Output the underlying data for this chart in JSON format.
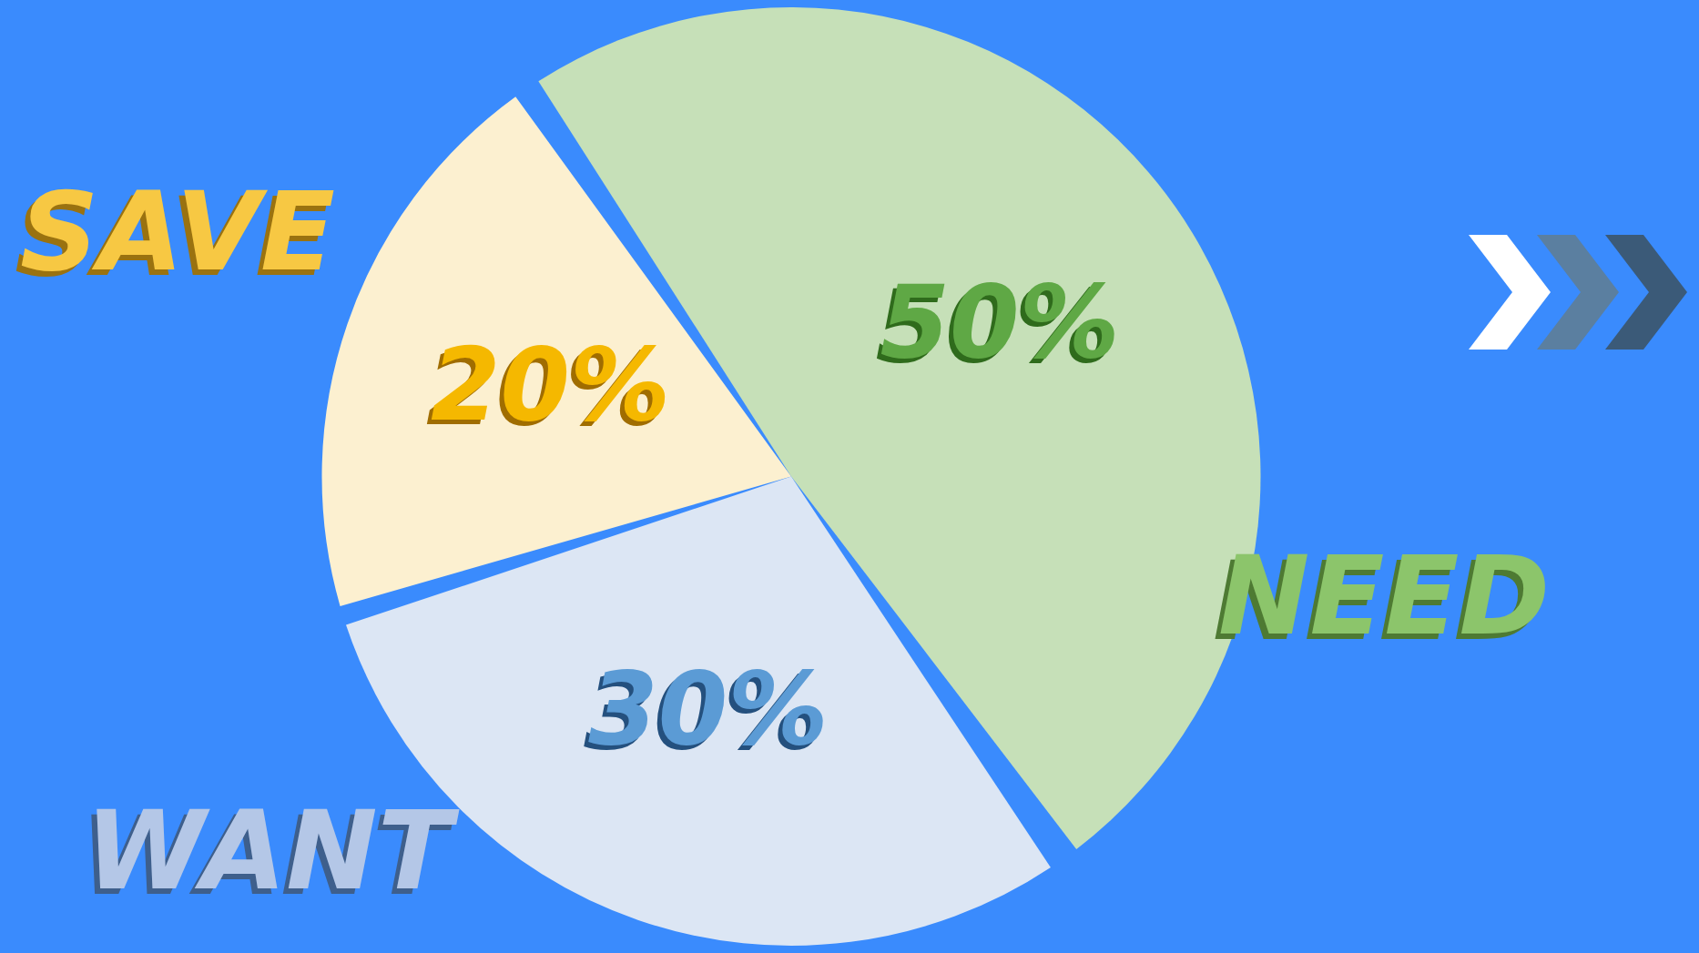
{
  "chart_data": {
    "type": "pie",
    "categories": [
      "NEED",
      "WANT",
      "SAVE"
    ],
    "values": [
      50,
      30,
      20
    ],
    "colors": [
      "#c6e0b8",
      "#dce6f4",
      "#fcf0d0"
    ],
    "value_labels": [
      "50%",
      "30%",
      "20%"
    ],
    "legend": false
  }
}
